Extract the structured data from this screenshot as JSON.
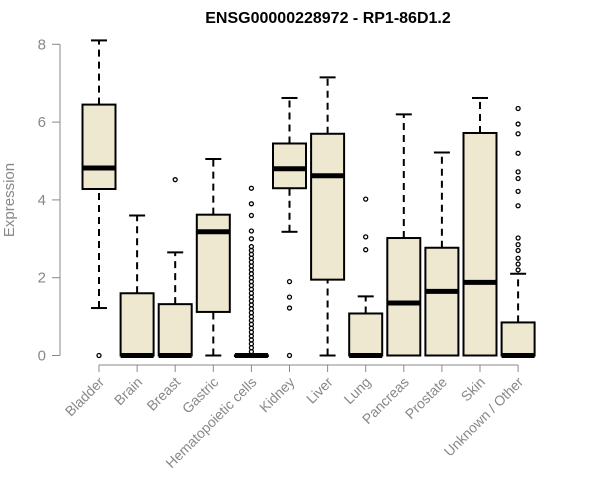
{
  "chart_data": {
    "type": "box",
    "title": "ENSG00000228972 - RP1-86D1.2",
    "ylabel": "Expression",
    "xlabel": "",
    "ylim": [
      0,
      8
    ],
    "yticks": [
      0,
      2,
      4,
      6,
      8
    ],
    "grid": false,
    "box_fill": "#EEE8D0",
    "categories": [
      "Bladder",
      "Brain",
      "Breast",
      "Gastric",
      "Hematopoietic cells",
      "Kidney",
      "Liver",
      "Lung",
      "Pancreas",
      "Prostate",
      "Skin",
      "Unknown / Other"
    ],
    "boxes": [
      {
        "min": 1.22,
        "q1": 4.28,
        "median": 4.82,
        "q3": 6.45,
        "max": 8.1,
        "outliers": [
          0.0
        ]
      },
      {
        "min": 0.0,
        "q1": 0.0,
        "median": 0.0,
        "q3": 1.6,
        "max": 3.6,
        "outliers": []
      },
      {
        "min": 0.0,
        "q1": 0.0,
        "median": 0.0,
        "q3": 1.32,
        "max": 2.65,
        "outliers": [
          4.52
        ]
      },
      {
        "min": 0.0,
        "q1": 1.12,
        "median": 3.18,
        "q3": 3.62,
        "max": 5.05,
        "outliers": []
      },
      {
        "min": 0.0,
        "q1": 0.0,
        "median": 0.0,
        "q3": 0.0,
        "max": 0.0,
        "outliers": [
          0.1,
          0.2,
          0.3,
          0.4,
          0.5,
          0.6,
          0.7,
          0.8,
          0.9,
          1.0,
          1.1,
          1.2,
          1.3,
          1.4,
          1.5,
          1.6,
          1.7,
          1.8,
          1.9,
          2.0,
          2.1,
          2.2,
          2.3,
          2.4,
          2.5,
          2.6,
          2.7,
          2.8,
          3.0,
          3.2,
          3.6,
          3.9,
          4.3
        ]
      },
      {
        "min": 3.18,
        "q1": 4.3,
        "median": 4.8,
        "q3": 5.45,
        "max": 6.62,
        "outliers": [
          0.0,
          1.22,
          1.5,
          1.9
        ]
      },
      {
        "min": 0.0,
        "q1": 1.95,
        "median": 4.62,
        "q3": 5.7,
        "max": 7.15,
        "outliers": []
      },
      {
        "min": 0.0,
        "q1": 0.0,
        "median": 0.0,
        "q3": 1.08,
        "max": 1.52,
        "outliers": [
          2.72,
          3.05,
          4.02
        ]
      },
      {
        "min": 0.0,
        "q1": 0.0,
        "median": 1.35,
        "q3": 3.02,
        "max": 6.2,
        "outliers": []
      },
      {
        "min": 0.0,
        "q1": 0.0,
        "median": 1.65,
        "q3": 2.77,
        "max": 5.22,
        "outliers": []
      },
      {
        "min": 0.0,
        "q1": 0.0,
        "median": 1.88,
        "q3": 5.72,
        "max": 6.62,
        "outliers": []
      },
      {
        "min": 0.0,
        "q1": 0.0,
        "median": 0.0,
        "q3": 0.85,
        "max": 2.1,
        "outliers": [
          2.2,
          2.35,
          2.5,
          2.7,
          2.85,
          3.02,
          3.85,
          4.22,
          4.55,
          4.72,
          5.2,
          5.7,
          5.95,
          6.35
        ]
      }
    ]
  }
}
